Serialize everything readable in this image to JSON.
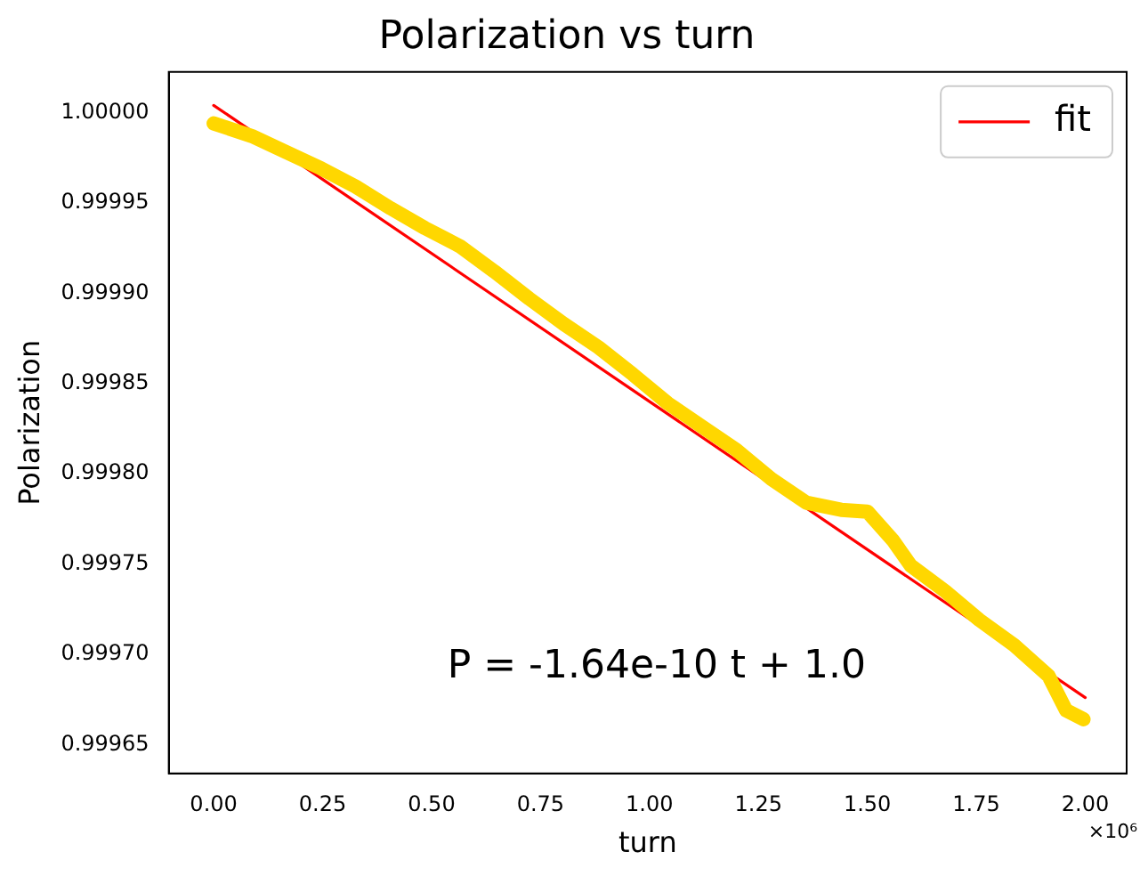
{
  "chart_data": {
    "type": "line",
    "title": "Polarization vs turn",
    "xlabel": "turn",
    "ylabel": "Polarization",
    "annotations": [
      "P = -1.64e-10 t + 1.0",
      "×10⁶"
    ],
    "xlim": [
      -0.103,
      2.095
    ],
    "xticks": [
      {
        "value": 0,
        "label": "0.00"
      },
      0.25,
      {
        "value": 0.5,
        "label": "0.50"
      },
      0.75,
      {
        "value": 1,
        "label": "1.00"
      },
      1.25,
      {
        "value": 1.5,
        "label": "1.50"
      },
      1.75,
      {
        "value": 2,
        "label": "2.00"
      }
    ],
    "ylim": [
      0.999634,
      1.0000225
    ],
    "yticks": [
      0.99965,
      {
        "value": 0.9997,
        "label": "0.99970"
      },
      0.99975,
      {
        "value": 0.9998,
        "label": "0.99980"
      },
      0.99985,
      {
        "value": 0.9999,
        "label": "0.99990"
      },
      0.99995,
      {
        "value": 1,
        "label": "1.00000"
      }
    ],
    "legend": "top right",
    "grid": false,
    "marker": "none",
    "line_style": "solid",
    "series": [
      {
        "color": "#ffd700",
        "x": [
          0,
          0.0875,
          0.167,
          0.247,
          0.326,
          0.406,
          0.485,
          0.565,
          0.644,
          0.724,
          0.803,
          0.883,
          0.962,
          1.042,
          1.121,
          1.2,
          1.28,
          1.36,
          1.44,
          1.5,
          1.559,
          1.6,
          1.678,
          1.757,
          1.837,
          1.916,
          1.956,
          1.996
        ],
        "values": [
          0.999994,
          0.999987,
          0.999978,
          0.999969,
          0.999959,
          0.999947,
          0.999936,
          0.999926,
          0.999912,
          0.999897,
          0.999883,
          0.99987,
          0.999855,
          0.999839,
          0.999826,
          0.999813,
          0.999797,
          0.999784,
          0.99978,
          0.999779,
          0.999763,
          0.999749,
          0.999735,
          0.999719,
          0.999705,
          0.999688,
          0.999669,
          0.999664
        ]
      },
      {
        "name": "fit",
        "color": "#ff0000",
        "x": [
          0,
          2
        ],
        "values": [
          1.000004,
          0.999676
        ]
      }
    ]
  }
}
